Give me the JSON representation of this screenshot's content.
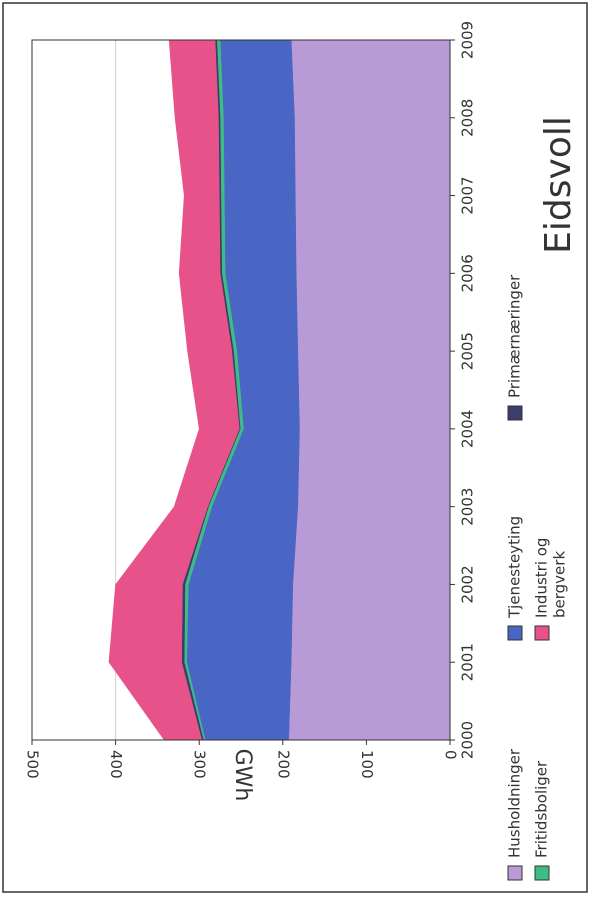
{
  "chart_data": {
    "type": "area",
    "stacked": true,
    "title": "Eidsvoll",
    "ylabel": "GWh",
    "xlabel": "",
    "orientation": "rotated-90-clockwise",
    "x": [
      2000,
      2001,
      2002,
      2003,
      2004,
      2005,
      2006,
      2007,
      2008,
      2009
    ],
    "ylim": [
      0,
      500
    ],
    "yticks": [
      0,
      100,
      200,
      300,
      400,
      500
    ],
    "grid": true,
    "legend_position": "bottom",
    "series": [
      {
        "name": "Husholdninger",
        "color": "#b79ad6",
        "values": [
          193,
          190,
          188,
          182,
          180,
          182,
          184,
          185,
          186,
          190
        ]
      },
      {
        "name": "Tjenesteyting",
        "color": "#4a66c4",
        "values": [
          100,
          125,
          125,
          103,
          67,
          73,
          85,
          85,
          85,
          85
        ]
      },
      {
        "name": "Fritidsboliger",
        "color": "#3dbd84",
        "values": [
          2,
          3,
          4,
          4,
          4,
          4,
          4,
          4,
          4,
          4
        ]
      },
      {
        "name": "Primærnæringer",
        "color": "#3b3d6e",
        "values": [
          2,
          3,
          3,
          1,
          1,
          2,
          2,
          2,
          2,
          2
        ]
      },
      {
        "name": "Industri og bergverk",
        "color": "#e8528a",
        "values": [
          45,
          87,
          80,
          40,
          48,
          53,
          49,
          42,
          52,
          55
        ]
      }
    ]
  }
}
